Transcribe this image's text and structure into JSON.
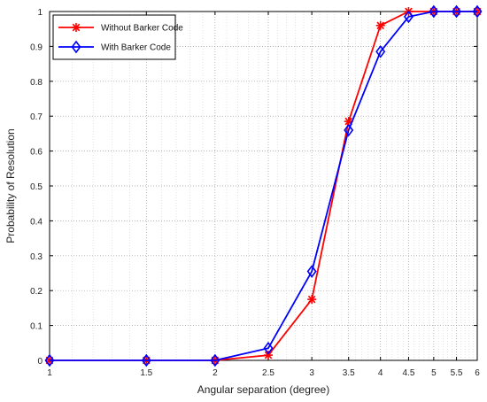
{
  "chart_data": {
    "type": "line",
    "title": "",
    "xlabel": "Angular separation (degree)",
    "ylabel": "Probability of Resolution",
    "xlim": [
      1,
      6
    ],
    "ylim": [
      0,
      1
    ],
    "x_scale": "log",
    "grid": true,
    "legend_position": "top-left",
    "x_ticks": [
      1,
      1.5,
      2,
      2.5,
      3,
      3.5,
      4,
      4.5,
      5,
      5.5,
      6
    ],
    "x_tick_labels": [
      "1",
      "1.5",
      "2",
      "2.5",
      "3",
      "3.5",
      "4",
      "4.5",
      "5",
      "5.5",
      "6"
    ],
    "y_ticks": [
      0,
      0.1,
      0.2,
      0.3,
      0.4,
      0.5,
      0.6,
      0.7,
      0.8,
      0.9,
      1
    ],
    "y_tick_labels": [
      "0",
      "0.1",
      "0.2",
      "0.3",
      "0.4",
      "0.5",
      "0.6",
      "0.7",
      "0.8",
      "0.9",
      "1"
    ],
    "x": [
      1,
      1.5,
      2,
      2.5,
      3,
      3.5,
      4,
      4.5,
      5,
      5.5,
      6
    ],
    "series": [
      {
        "name": "Without Barker Code",
        "color": "#ff0000",
        "marker": "star",
        "values": [
          0,
          0,
          0,
          0.015,
          0.175,
          0.685,
          0.96,
          1.0,
          1.0,
          1.0,
          1.0
        ]
      },
      {
        "name": "With Barker Code",
        "color": "#0000ff",
        "marker": "diamond",
        "values": [
          0,
          0,
          0,
          0.035,
          0.255,
          0.66,
          0.885,
          0.985,
          1.0,
          1.0,
          1.0
        ]
      }
    ]
  }
}
